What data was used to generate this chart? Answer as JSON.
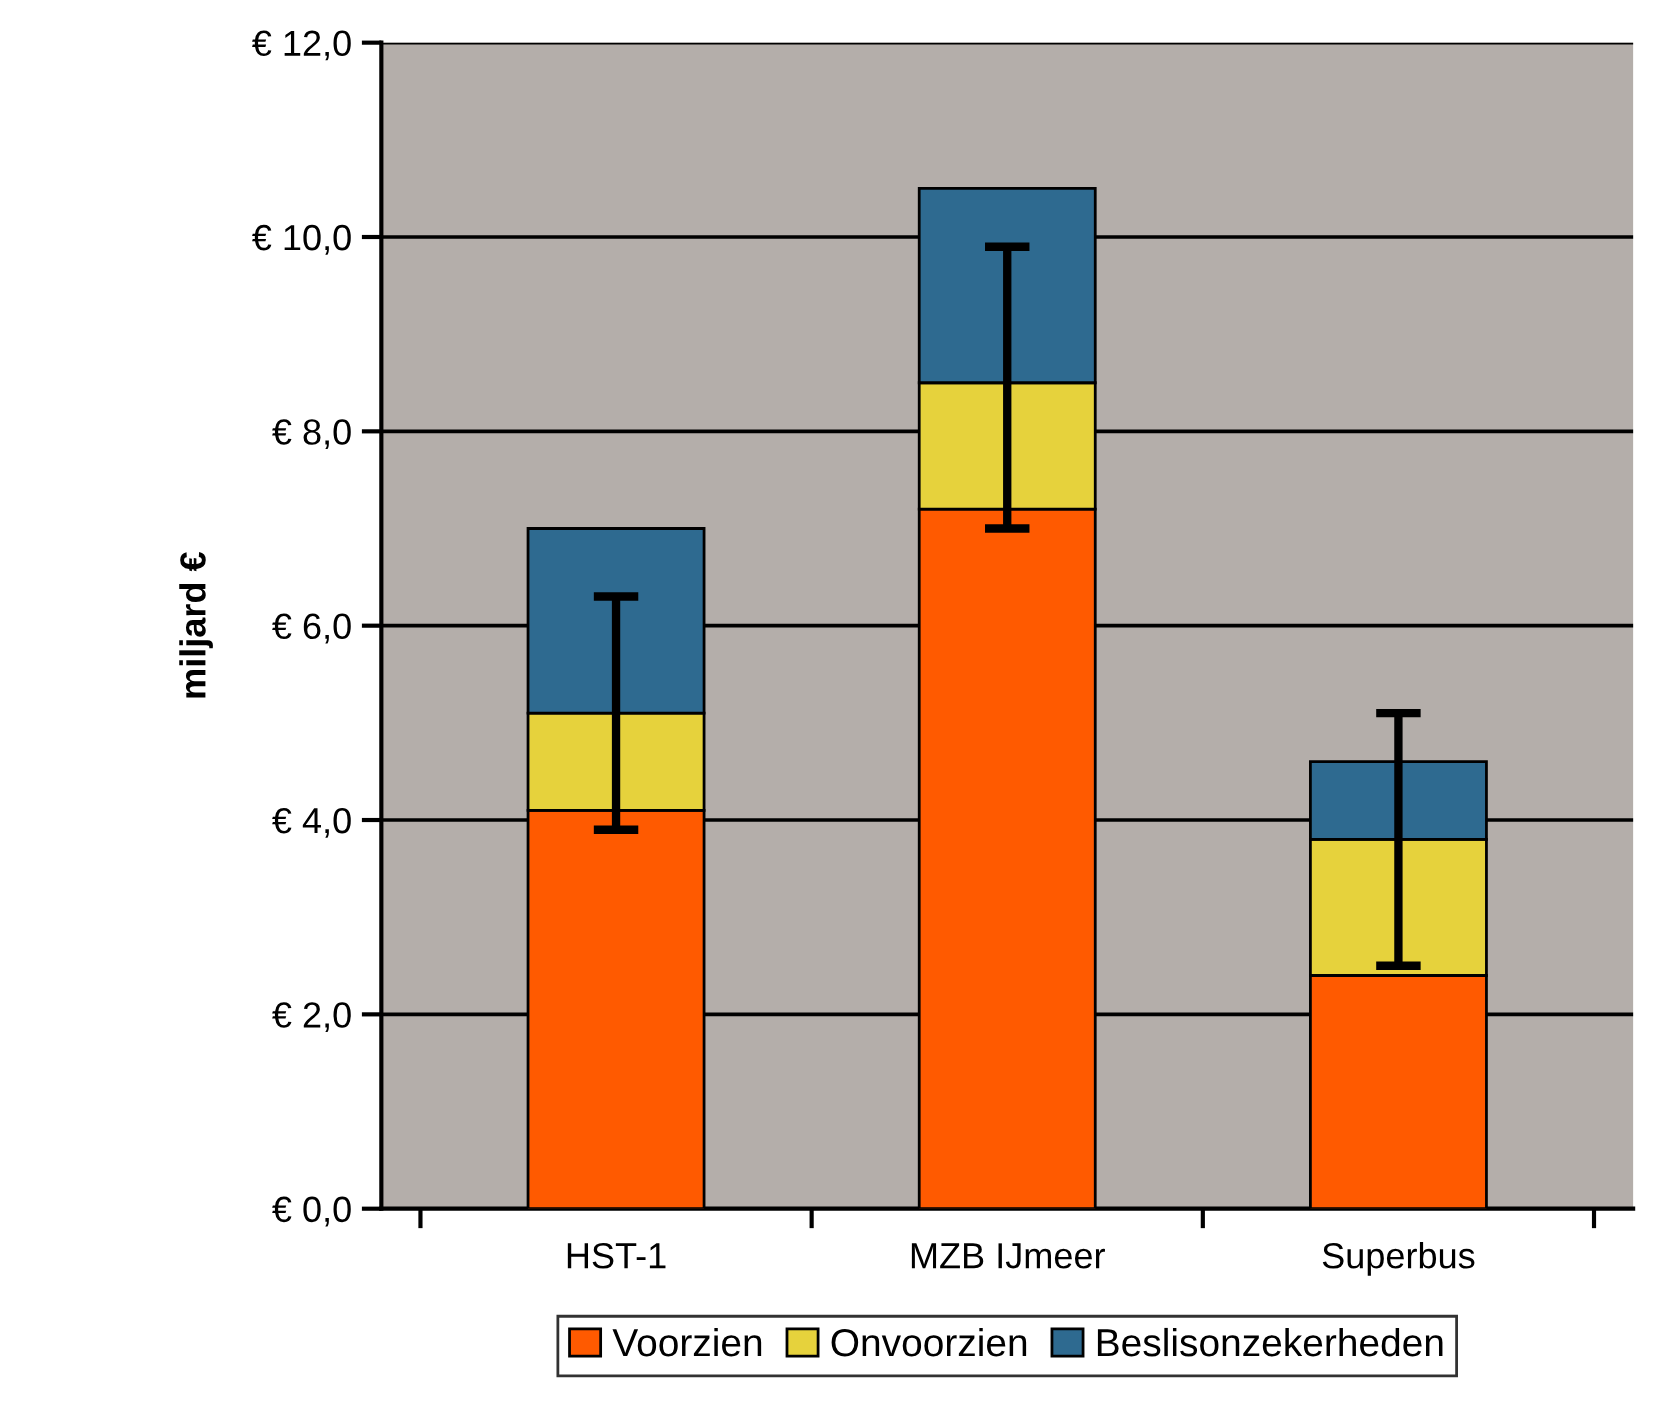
{
  "chart_data": {
    "type": "bar",
    "stacked": true,
    "ylabel": "miljard €",
    "categories": [
      "HST-1",
      "MZB IJmeer",
      "Superbus"
    ],
    "series": [
      {
        "name": "Voorzien",
        "color": "#ff5a00",
        "values": [
          4.1,
          7.2,
          2.4
        ]
      },
      {
        "name": "Onvoorzien",
        "color": "#e6d23c",
        "values": [
          1.0,
          1.3,
          1.4
        ]
      },
      {
        "name": "Beslisonzekerheden",
        "color": "#2e6a90",
        "values": [
          1.9,
          2.0,
          0.8
        ],
        "errors": [
          [
            3.9,
            6.3
          ],
          [
            7.0,
            9.9
          ],
          [
            2.5,
            5.1
          ]
        ]
      }
    ],
    "ylim": [
      0,
      12
    ],
    "yticks": [
      {
        "value": 0,
        "label": "€ 0,0"
      },
      {
        "value": 2,
        "label": "€ 2,0"
      },
      {
        "value": 4,
        "label": "€ 4,0"
      },
      {
        "value": 6,
        "label": "€ 6,0"
      },
      {
        "value": 8,
        "label": "€ 8,0"
      },
      {
        "value": 10,
        "label": "€ 10,0"
      },
      {
        "value": 12,
        "label": "€ 12,0"
      }
    ],
    "grid": "y",
    "legend": "bottom"
  }
}
